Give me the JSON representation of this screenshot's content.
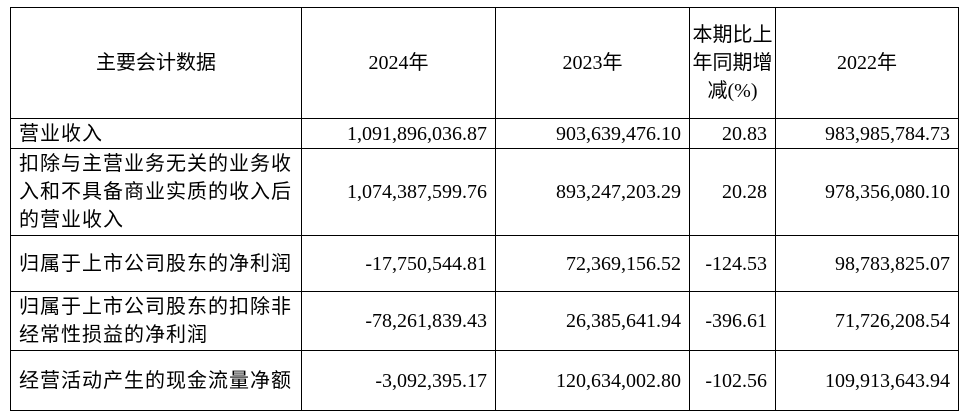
{
  "table": {
    "header": [
      "主要会计数据",
      "2024年",
      "2023年",
      "本期比上年同期增减(%)",
      "2022年"
    ],
    "rows": [
      [
        "营业收入",
        "1,091,896,036.87",
        "903,639,476.10",
        "20.83",
        "983,985,784.73"
      ],
      [
        "扣除与主营业务无关的业务收入和不具备商业实质的收入后的营业收入",
        "1,074,387,599.76",
        "893,247,203.29",
        "20.28",
        "978,356,080.10"
      ],
      [
        "归属于上市公司股东的净利润",
        "-17,750,544.81",
        "72,369,156.52",
        "-124.53",
        "98,783,825.07"
      ],
      [
        "归属于上市公司股东的扣除非经常性损益的净利润",
        "-78,261,839.43",
        "26,385,641.94",
        "-396.61",
        "71,726,208.54"
      ],
      [
        "经营活动产生的现金流量净额",
        "-3,092,395.17",
        "120,634,002.80",
        "-102.56",
        "109,913,643.94"
      ]
    ]
  }
}
